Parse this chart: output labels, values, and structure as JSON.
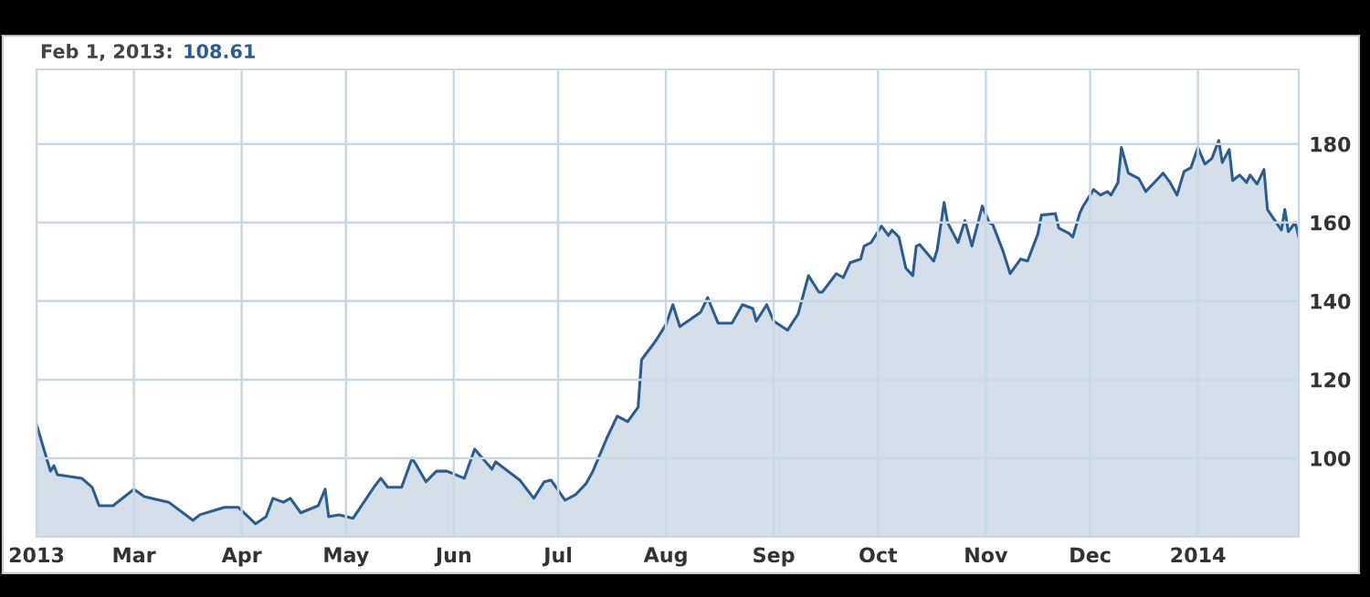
{
  "chart_data": {
    "type": "area",
    "annotations": [
      "Feb 1, 2013:",
      "108.61"
    ],
    "x": [
      "2013-02-01",
      "2013-02-05",
      "2013-02-06",
      "2013-02-07",
      "2013-02-14",
      "2013-02-17",
      "2013-02-19",
      "2013-02-23",
      "2013-03-01",
      "2013-03-04",
      "2013-03-11",
      "2013-03-18",
      "2013-03-20",
      "2013-03-27",
      "2013-03-31",
      "2013-04-05",
      "2013-04-08",
      "2013-04-10",
      "2013-04-13",
      "2013-04-15",
      "2013-04-18",
      "2013-04-23",
      "2013-04-25",
      "2013-04-26",
      "2013-04-29",
      "2013-05-03",
      "2013-05-09",
      "2013-05-11",
      "2013-05-13",
      "2013-05-17",
      "2013-05-20",
      "2013-05-21",
      "2013-05-24",
      "2013-05-27",
      "2013-05-30",
      "2013-06-04",
      "2013-06-07",
      "2013-06-12",
      "2013-06-13",
      "2013-06-20",
      "2013-06-24",
      "2013-06-27",
      "2013-06-29",
      "2013-07-03",
      "2013-07-06",
      "2013-07-09",
      "2013-07-11",
      "2013-07-15",
      "2013-07-18",
      "2013-07-21",
      "2013-07-24",
      "2013-07-25",
      "2013-07-29",
      "2013-08-01",
      "2013-08-03",
      "2013-08-05",
      "2013-08-08",
      "2013-08-11",
      "2013-08-13",
      "2013-08-16",
      "2013-08-20",
      "2013-08-23",
      "2013-08-26",
      "2013-08-27",
      "2013-08-30",
      "2013-09-01",
      "2013-09-05",
      "2013-09-08",
      "2013-09-11",
      "2013-09-14",
      "2013-09-15",
      "2013-09-19",
      "2013-09-21",
      "2013-09-23",
      "2013-09-26",
      "2013-09-27",
      "2013-09-29",
      "2013-10-02",
      "2013-10-04",
      "2013-10-05",
      "2013-10-07",
      "2013-10-09",
      "2013-10-11",
      "2013-10-12",
      "2013-10-13",
      "2013-10-17",
      "2013-10-18",
      "2013-10-20",
      "2013-10-21",
      "2013-10-24",
      "2013-10-26",
      "2013-10-28",
      "2013-10-31",
      "2013-11-02",
      "2013-11-03",
      "2013-11-06",
      "2013-11-08",
      "2013-11-11",
      "2013-11-13",
      "2013-11-16",
      "2013-11-17",
      "2013-11-21",
      "2013-11-22",
      "2013-11-25",
      "2013-11-26",
      "2013-11-28",
      "2013-11-29",
      "2013-12-02",
      "2013-12-04",
      "2013-12-06",
      "2013-12-07",
      "2013-12-09",
      "2013-12-10",
      "2013-12-12",
      "2013-12-15",
      "2013-12-17",
      "2013-12-20",
      "2013-12-22",
      "2013-12-24",
      "2013-12-26",
      "2013-12-28",
      "2013-12-30",
      "2014-01-01",
      "2014-01-03",
      "2014-01-05",
      "2014-01-07",
      "2014-01-08",
      "2014-01-10",
      "2014-01-11",
      "2014-01-13",
      "2014-01-15",
      "2014-01-16",
      "2014-01-18",
      "2014-01-20",
      "2014-01-21",
      "2014-01-25",
      "2014-01-26",
      "2014-01-27",
      "2014-01-29",
      "2014-01-30"
    ],
    "series": [
      {
        "color": "#2a5d91",
        "values": [
          108.6,
          96.7,
          98.1,
          95.8,
          94.9,
          92.6,
          87.9,
          87.9,
          92.1,
          90.2,
          88.8,
          84.2,
          85.6,
          87.5,
          87.5,
          83.3,
          85.1,
          89.8,
          88.8,
          89.8,
          86.1,
          87.9,
          92.1,
          85.1,
          85.6,
          84.7,
          92.6,
          94.9,
          92.6,
          92.6,
          100,
          98.6,
          94.0,
          96.7,
          96.7,
          94.9,
          102.3,
          97.2,
          99.1,
          94.4,
          89.8,
          94.0,
          94.4,
          89.3,
          90.7,
          93.5,
          96.7,
          105.1,
          110.7,
          109.3,
          113.0,
          125.1,
          129.8,
          134.0,
          139.1,
          133.5,
          135.3,
          137.2,
          140.9,
          134.4,
          134.4,
          139.1,
          138.1,
          134.9,
          139.1,
          134.9,
          132.6,
          136.7,
          146.5,
          142.3,
          142.3,
          147.0,
          146.0,
          149.8,
          150.7,
          154.0,
          154.9,
          159.1,
          156.7,
          158.1,
          156.3,
          148.4,
          146.5,
          154.0,
          154.4,
          150.2,
          153.0,
          165.1,
          160.0,
          154.9,
          160.5,
          154.0,
          164.2,
          160.0,
          159.5,
          152.6,
          147.0,
          150.7,
          150.2,
          157.2,
          161.9,
          162.3,
          158.6,
          157.2,
          156.3,
          162.3,
          164.2,
          168.4,
          167.0,
          167.9,
          167.0,
          170.2,
          179.1,
          172.6,
          171.2,
          167.9,
          170.7,
          172.6,
          170.2,
          167.0,
          173.0,
          174.0,
          179.1,
          174.9,
          176.3,
          180.9,
          175.3,
          178.6,
          170.7,
          172.1,
          170.2,
          172.1,
          169.8,
          173.5,
          163.3,
          158.1,
          163.3,
          157.7,
          160.0,
          156.3
        ]
      }
    ],
    "xlim": [
      "2013-02-01",
      "2014-01-30"
    ],
    "xticks": [
      {
        "value": "2013-02-01",
        "label": "2013"
      },
      {
        "value": "2013-03-01",
        "label": "Mar"
      },
      {
        "value": "2013-04-01",
        "label": "Apr"
      },
      {
        "value": "2013-05-01",
        "label": "May"
      },
      {
        "value": "2013-06-01",
        "label": "Jun"
      },
      {
        "value": "2013-07-01",
        "label": "Jul"
      },
      {
        "value": "2013-08-01",
        "label": "Aug"
      },
      {
        "value": "2013-09-01",
        "label": "Sep"
      },
      {
        "value": "2013-10-01",
        "label": "Oct"
      },
      {
        "value": "2013-11-01",
        "label": "Nov"
      },
      {
        "value": "2013-12-01",
        "label": "Dec"
      },
      {
        "value": "2014-01-01",
        "label": "2014"
      }
    ],
    "ylim": [
      80,
      199
    ],
    "yticks": [
      100,
      120,
      140,
      160,
      180
    ],
    "grid": true
  }
}
